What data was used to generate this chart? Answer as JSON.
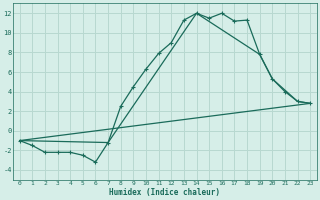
{
  "xlabel": "Humidex (Indice chaleur)",
  "ylabel": "",
  "background_color": "#d6eee8",
  "grid_color": "#b8d8d0",
  "line_color": "#1a6b5a",
  "xlim": [
    -0.5,
    23.5
  ],
  "ylim": [
    -5,
    13
  ],
  "xticks": [
    0,
    1,
    2,
    3,
    4,
    5,
    6,
    7,
    8,
    9,
    10,
    11,
    12,
    13,
    14,
    15,
    16,
    17,
    18,
    19,
    20,
    21,
    22,
    23
  ],
  "yticks": [
    -4,
    -2,
    0,
    2,
    4,
    6,
    8,
    10,
    12
  ],
  "line1_x": [
    0,
    1,
    2,
    3,
    4,
    5,
    6,
    7,
    8,
    9,
    10,
    11,
    12,
    13,
    14,
    15,
    16,
    17,
    18,
    19,
    20,
    21,
    22,
    23
  ],
  "line1_y": [
    -1,
    -1.5,
    -2.2,
    -2.2,
    -2.2,
    -2.5,
    -3.2,
    -1.2,
    2.5,
    4.5,
    6.3,
    7.9,
    9.0,
    11.3,
    12.0,
    11.5,
    12.0,
    11.2,
    11.3,
    7.8,
    5.3,
    4.0,
    3.0,
    2.8
  ],
  "line2_x": [
    0,
    7,
    14,
    19,
    20,
    22,
    23
  ],
  "line2_y": [
    -1,
    -1.2,
    12.0,
    7.8,
    5.3,
    3.0,
    2.8
  ],
  "line3_x": [
    0,
    23
  ],
  "line3_y": [
    -1,
    2.8
  ]
}
